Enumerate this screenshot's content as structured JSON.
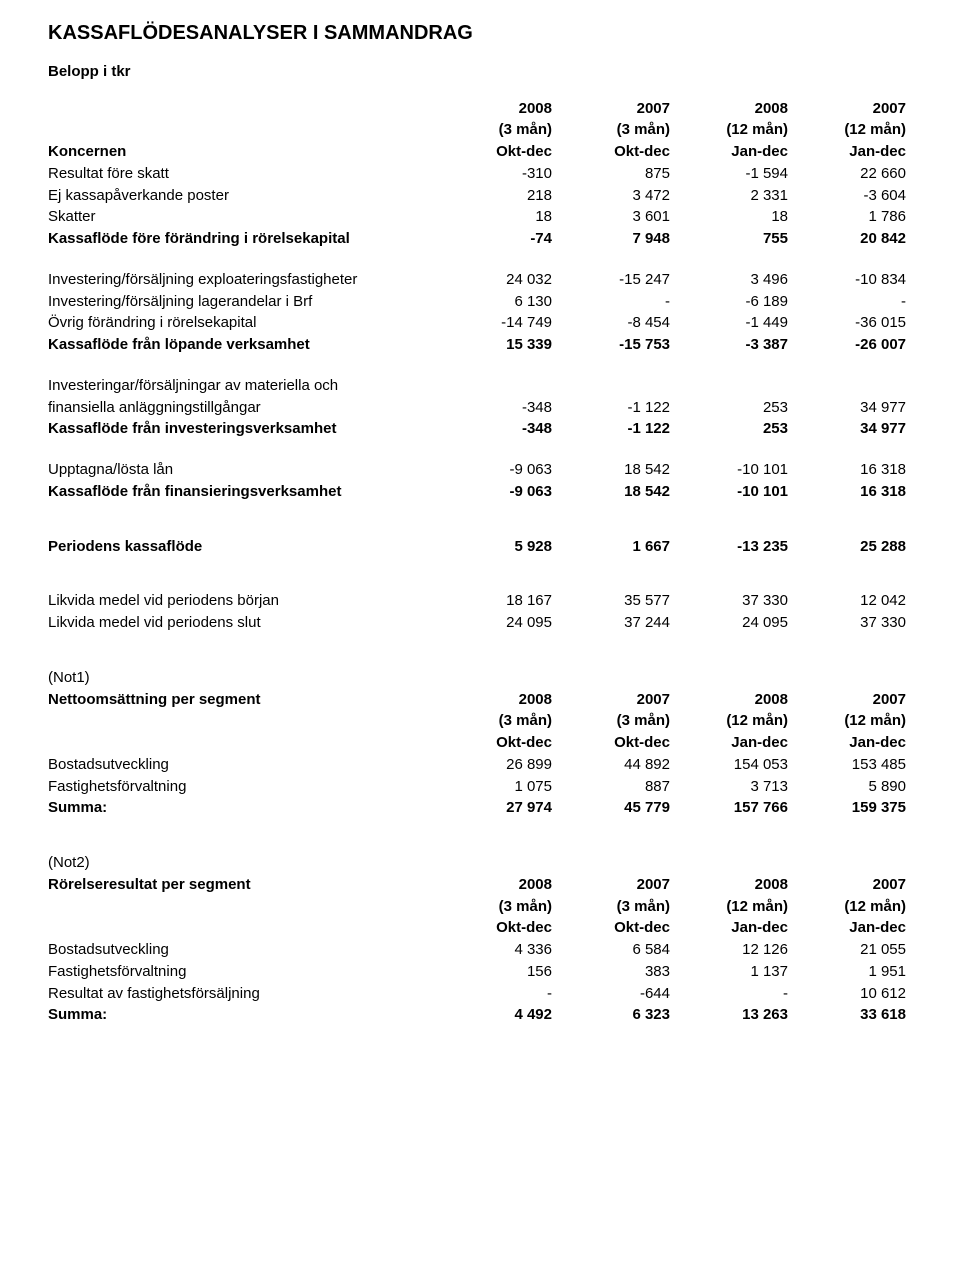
{
  "title": "KASSAFLÖDESANALYSER I SAMMANDRAG",
  "subtitle": "Belopp i tkr",
  "header": {
    "koncernen": "Koncernen",
    "years": [
      "2008",
      "2007",
      "2008",
      "2007"
    ],
    "months": [
      "(3 mån)",
      "(3 mån)",
      "(12 mån)",
      "(12 mån)"
    ],
    "periods": [
      "Okt-dec",
      "Okt-dec",
      "Jan-dec",
      "Jan-dec"
    ]
  },
  "rows": {
    "resultat_fore_skatt": {
      "label": "Resultat före skatt",
      "v": [
        "-310",
        "875",
        "-1 594",
        "22 660"
      ]
    },
    "ej_kassa": {
      "label": "Ej kassapåverkande poster",
      "v": [
        "218",
        "3 472",
        "2 331",
        "-3 604"
      ]
    },
    "skatter": {
      "label": "Skatter",
      "v": [
        "18",
        "3 601",
        "18",
        "1 786"
      ]
    },
    "kf_fore": {
      "label": "Kassaflöde före förändring i rörelsekapital",
      "v": [
        "-74",
        "7 948",
        "755",
        "20 842"
      ]
    },
    "inv_expl": {
      "label": "Investering/försäljning exploateringsfastigheter",
      "v": [
        "24 032",
        "-15 247",
        "3 496",
        "-10 834"
      ]
    },
    "inv_lager": {
      "label": "Investering/försäljning lagerandelar i Brf",
      "v": [
        "6 130",
        "-",
        "-6 189",
        "-"
      ]
    },
    "ovrig_forandr": {
      "label": "Övrig förändring i rörelsekapital",
      "v": [
        "-14 749",
        "-8 454",
        "-1 449",
        "-36 015"
      ]
    },
    "kf_lopande": {
      "label": "Kassaflöde från löpande verksamhet",
      "v": [
        "15 339",
        "-15 753",
        "-3 387",
        "-26 007"
      ]
    },
    "inv_mat1": {
      "label": "Investeringar/försäljningar av materiella och"
    },
    "inv_mat2": {
      "label": "finansiella anläggningstillgångar",
      "v": [
        "-348",
        "-1 122",
        "253",
        "34 977"
      ]
    },
    "kf_inv": {
      "label": "Kassaflöde från investeringsverksamhet",
      "v": [
        "-348",
        "-1 122",
        "253",
        "34 977"
      ]
    },
    "upptagna": {
      "label": "Upptagna/lösta lån",
      "v": [
        "-9 063",
        "18 542",
        "-10 101",
        "16 318"
      ]
    },
    "kf_fin": {
      "label": "Kassaflöde från finansieringsverksamhet",
      "v": [
        "-9 063",
        "18 542",
        "-10 101",
        "16 318"
      ]
    },
    "periodens": {
      "label": "Periodens kassaflöde",
      "v": [
        "5 928",
        "1 667",
        "-13 235",
        "25 288"
      ]
    },
    "likvida_borjan": {
      "label": "Likvida medel vid periodens början",
      "v": [
        "18 167",
        "35 577",
        "37 330",
        "12 042"
      ]
    },
    "likvida_slut": {
      "label": "Likvida medel vid periodens slut",
      "v": [
        "24 095",
        "37 244",
        "24 095",
        "37 330"
      ]
    }
  },
  "note1": {
    "tag": "(Not1)",
    "title": "Nettoomsättning per segment",
    "years": [
      "2008",
      "2007",
      "2008",
      "2007"
    ],
    "months": [
      "(3 mån)",
      "(3 mån)",
      "(12 mån)",
      "(12 mån)"
    ],
    "periods": [
      "Okt-dec",
      "Okt-dec",
      "Jan-dec",
      "Jan-dec"
    ],
    "bostad": {
      "label": "Bostadsutveckling",
      "v": [
        "26 899",
        "44 892",
        "154 053",
        "153 485"
      ]
    },
    "fastighet": {
      "label": "Fastighetsförvaltning",
      "v": [
        "1 075",
        "887",
        "3 713",
        "5 890"
      ]
    },
    "summa": {
      "label": "Summa:",
      "v": [
        "27 974",
        "45 779",
        "157 766",
        "159 375"
      ]
    }
  },
  "note2": {
    "tag": "(Not2)",
    "title": "Rörelseresultat per segment",
    "years": [
      "2008",
      "2007",
      "2008",
      "2007"
    ],
    "months": [
      "(3 mån)",
      "(3 mån)",
      "(12 mån)",
      "(12 mån)"
    ],
    "periods": [
      "Okt-dec",
      "Okt-dec",
      "Jan-dec",
      "Jan-dec"
    ],
    "bostad": {
      "label": "Bostadsutveckling",
      "v": [
        "4 336",
        "6 584",
        "12 126",
        "21 055"
      ]
    },
    "fastighet": {
      "label": "Fastighetsförvaltning",
      "v": [
        "156",
        "383",
        "1 137",
        "1 951"
      ]
    },
    "resultat": {
      "label": "Resultat av fastighetsförsäljning",
      "v": [
        "-",
        "-644",
        "-",
        "10 612"
      ]
    },
    "summa": {
      "label": "Summa:",
      "v": [
        "4 492",
        "6 323",
        "13 263",
        "33 618"
      ]
    }
  }
}
